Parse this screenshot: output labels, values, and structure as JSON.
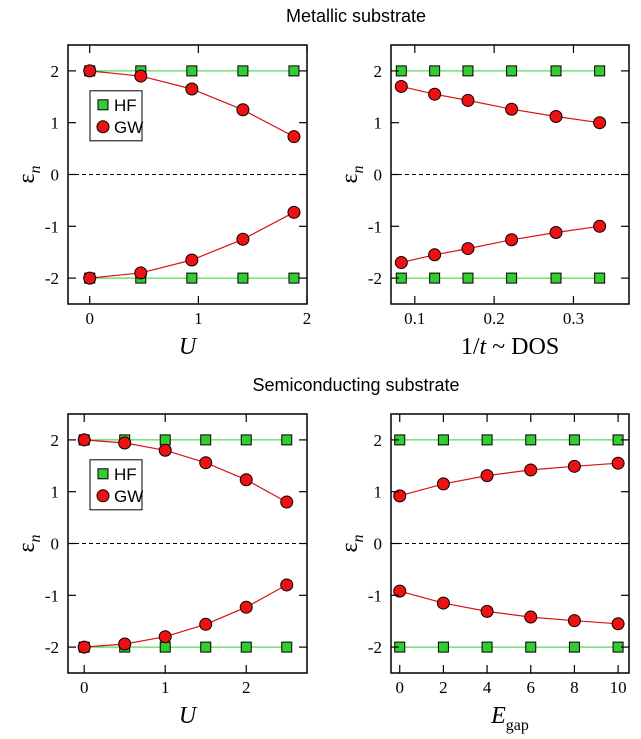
{
  "figure": {
    "sections": [
      {
        "title": "Metallic substrate"
      },
      {
        "title": "Semiconducting substrate"
      }
    ]
  },
  "colors": {
    "hf_fill": "#33cc33",
    "hf_line": "#55dd55",
    "gw_fill": "#ee1111",
    "gw_line": "#dd1111"
  },
  "chart_data": [
    {
      "type": "line",
      "section": 0,
      "xlabel": "U",
      "ylabel": "ε_n",
      "xlim": [
        -0.2,
        2.0
      ],
      "ylim": [
        -2.5,
        2.5
      ],
      "xticks": [
        0,
        1,
        2
      ],
      "xtick_labels": [
        "0",
        "1",
        "2"
      ],
      "yticks": [
        -2,
        -1,
        0,
        1,
        2
      ],
      "ytick_labels": [
        "-2",
        "-1",
        "0",
        "1",
        "2"
      ],
      "zero_line": true,
      "legend": {
        "entries": [
          "HF",
          "GW"
        ],
        "position": "left"
      },
      "series": [
        {
          "name": "HF",
          "marker": "square",
          "x": [
            0,
            0.47,
            0.94,
            1.41,
            1.88
          ],
          "y": [
            2,
            2,
            2,
            2,
            2
          ]
        },
        {
          "name": "GW",
          "marker": "circle",
          "x": [
            0,
            0.47,
            0.94,
            1.41,
            1.88
          ],
          "y": [
            2,
            1.9,
            1.65,
            1.25,
            0.73
          ]
        },
        {
          "name": "HF",
          "marker": "square",
          "x": [
            0,
            0.47,
            0.94,
            1.41,
            1.88
          ],
          "y": [
            -2,
            -2,
            -2,
            -2,
            -2
          ]
        },
        {
          "name": "GW",
          "marker": "circle",
          "x": [
            0,
            0.47,
            0.94,
            1.41,
            1.88
          ],
          "y": [
            -2,
            -1.9,
            -1.65,
            -1.25,
            -0.73
          ]
        }
      ]
    },
    {
      "type": "line",
      "section": 0,
      "xlabel": "1/t ~ DOS",
      "ylabel": "ε_n",
      "xlim": [
        0.07,
        0.37
      ],
      "ylim": [
        -2.5,
        2.5
      ],
      "xticks": [
        0.1,
        0.2,
        0.3
      ],
      "xtick_labels": [
        "0.1",
        "0.2",
        "0.3"
      ],
      "yticks": [
        -2,
        -1,
        0,
        1,
        2
      ],
      "ytick_labels": [
        "-2",
        "-1",
        "0",
        "1",
        "2"
      ],
      "zero_line": true,
      "legend": null,
      "series": [
        {
          "name": "HF",
          "marker": "square",
          "x": [
            0.083,
            0.125,
            0.167,
            0.222,
            0.278,
            0.333
          ],
          "y": [
            2,
            2,
            2,
            2,
            2,
            2
          ]
        },
        {
          "name": "GW",
          "marker": "circle",
          "x": [
            0.083,
            0.125,
            0.167,
            0.222,
            0.278,
            0.333
          ],
          "y": [
            1.7,
            1.55,
            1.43,
            1.26,
            1.12,
            1.0
          ]
        },
        {
          "name": "HF",
          "marker": "square",
          "x": [
            0.083,
            0.125,
            0.167,
            0.222,
            0.278,
            0.333
          ],
          "y": [
            -2,
            -2,
            -2,
            -2,
            -2,
            -2
          ]
        },
        {
          "name": "GW",
          "marker": "circle",
          "x": [
            0.083,
            0.125,
            0.167,
            0.222,
            0.278,
            0.333
          ],
          "y": [
            -1.7,
            -1.55,
            -1.43,
            -1.26,
            -1.12,
            -1.0
          ]
        }
      ]
    },
    {
      "type": "line",
      "section": 1,
      "xlabel": "U",
      "ylabel": "ε_n",
      "xlim": [
        -0.2,
        2.75
      ],
      "ylim": [
        -2.5,
        2.5
      ],
      "xticks": [
        0,
        1,
        2
      ],
      "xtick_labels": [
        "0",
        "1",
        "2"
      ],
      "yticks": [
        -2,
        -1,
        0,
        1,
        2
      ],
      "ytick_labels": [
        "-2",
        "-1",
        "0",
        "1",
        "2"
      ],
      "zero_line": true,
      "legend": {
        "entries": [
          "HF",
          "GW"
        ],
        "position": "left"
      },
      "series": [
        {
          "name": "HF",
          "marker": "square",
          "x": [
            0,
            0.5,
            1,
            1.5,
            2,
            2.5
          ],
          "y": [
            2,
            2,
            2,
            2,
            2,
            2
          ]
        },
        {
          "name": "GW",
          "marker": "circle",
          "x": [
            0,
            0.5,
            1,
            1.5,
            2,
            2.5
          ],
          "y": [
            2,
            1.94,
            1.8,
            1.56,
            1.23,
            0.8
          ]
        },
        {
          "name": "HF",
          "marker": "square",
          "x": [
            0,
            0.5,
            1,
            1.5,
            2,
            2.5
          ],
          "y": [
            -2,
            -2,
            -2,
            -2,
            -2,
            -2
          ]
        },
        {
          "name": "GW",
          "marker": "circle",
          "x": [
            0,
            0.5,
            1,
            1.5,
            2,
            2.5
          ],
          "y": [
            -2,
            -1.94,
            -1.8,
            -1.56,
            -1.23,
            -0.8
          ]
        }
      ]
    },
    {
      "type": "line",
      "section": 1,
      "xlabel": "E_gap",
      "ylabel": "ε_n",
      "xlim": [
        -0.4,
        10.5
      ],
      "ylim": [
        -2.5,
        2.5
      ],
      "xticks": [
        0,
        2,
        4,
        6,
        8,
        10
      ],
      "xtick_labels": [
        "0",
        "2",
        "4",
        "6",
        "8",
        "10"
      ],
      "yticks": [
        -2,
        -1,
        0,
        1,
        2
      ],
      "ytick_labels": [
        "-2",
        "-1",
        "0",
        "1",
        "2"
      ],
      "zero_line": true,
      "legend": null,
      "series": [
        {
          "name": "HF",
          "marker": "square",
          "x": [
            0,
            2,
            4,
            6,
            8,
            10
          ],
          "y": [
            2,
            2,
            2,
            2,
            2,
            2
          ]
        },
        {
          "name": "GW",
          "marker": "circle",
          "x": [
            0,
            2,
            4,
            6,
            8,
            10
          ],
          "y": [
            0.92,
            1.15,
            1.31,
            1.42,
            1.49,
            1.55
          ]
        },
        {
          "name": "HF",
          "marker": "square",
          "x": [
            0,
            2,
            4,
            6,
            8,
            10
          ],
          "y": [
            -2,
            -2,
            -2,
            -2,
            -2,
            -2
          ]
        },
        {
          "name": "GW",
          "marker": "circle",
          "x": [
            0,
            2,
            4,
            6,
            8,
            10
          ],
          "y": [
            -0.92,
            -1.15,
            -1.31,
            -1.42,
            -1.49,
            -1.55
          ]
        }
      ]
    }
  ]
}
